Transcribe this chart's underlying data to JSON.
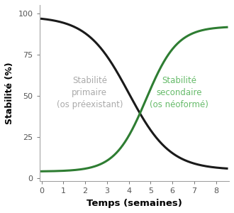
{
  "xlabel": "Temps (semaines)",
  "ylabel": "Stabilité (%)",
  "xlim": [
    -0.1,
    8.6
  ],
  "ylim": [
    -2,
    105
  ],
  "xticks": [
    0,
    1,
    2,
    3,
    4,
    5,
    6,
    7,
    8
  ],
  "yticks": [
    0,
    25,
    50,
    75,
    100
  ],
  "primary_color": "#1a1a1a",
  "secondary_color": "#2e7d32",
  "background_color": "#ffffff",
  "primary_label_color": "#aaaaaa",
  "secondary_label_color": "#66bb6a",
  "primary_k": 1.05,
  "primary_x0": 4.0,
  "primary_max": 93,
  "primary_min": 5,
  "secondary_k": 1.4,
  "secondary_x0": 4.8,
  "secondary_max": 88,
  "secondary_min": 4
}
